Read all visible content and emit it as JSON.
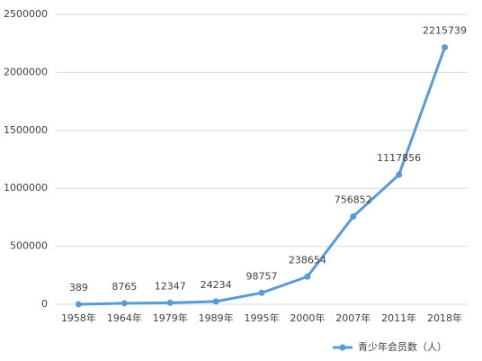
{
  "chart_data": {
    "type": "line",
    "categories": [
      "1958年",
      "1964年",
      "1979年",
      "1989年",
      "1995年",
      "2000年",
      "2007年",
      "2011年",
      "2018年"
    ],
    "series": [
      {
        "name": "青少年会员数（人）",
        "color": "#5b9bd5",
        "values": [
          389,
          8765,
          12347,
          24234,
          98757,
          238654,
          756852,
          1117856,
          2215739
        ]
      }
    ],
    "ylim": [
      0,
      2500000
    ],
    "yticks": [
      0,
      500000,
      1000000,
      1500000,
      2000000,
      2500000
    ],
    "grid": true,
    "legend": "bottom-right"
  }
}
